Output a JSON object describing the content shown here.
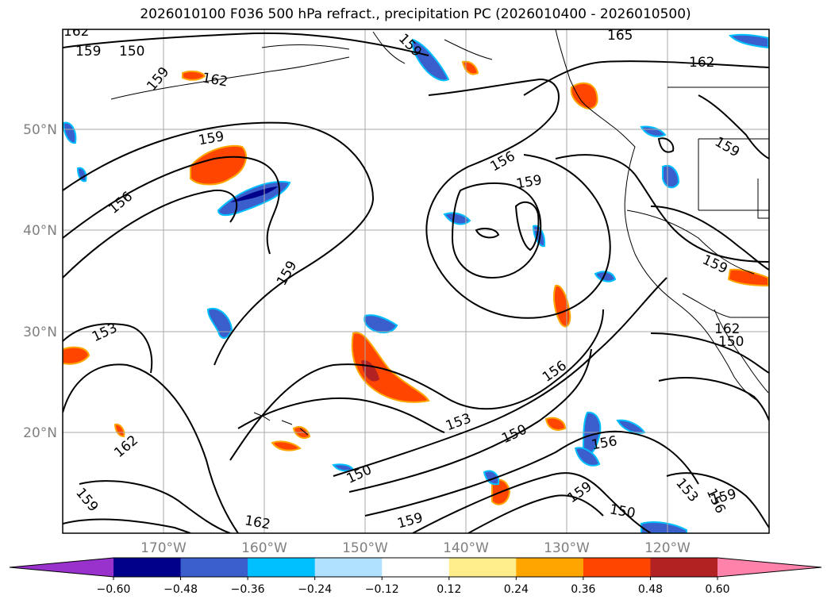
{
  "title": "2026010100 F036 500 hPa refract., precipitation PC (2026010400 - 2026010500)",
  "lat_labels": [
    "50°N",
    "40°N",
    "30°N",
    "20°N"
  ],
  "lon_labels": [
    "170°W",
    "160°W",
    "150°W",
    "140°W",
    "130°W",
    "120°W"
  ],
  "colorbar": {
    "colors": [
      "#9932cc",
      "#00008b",
      "#3a5fcd",
      "#00bfff",
      "#b0e2ff",
      "#ffffff",
      "#ffec8b",
      "#ffa500",
      "#ff4500",
      "#b22222",
      "#ff82ab"
    ],
    "tick_labels": [
      "−0.60",
      "−0.48",
      "−0.36",
      "−0.24",
      "−0.12",
      "0.12",
      "0.24",
      "0.36",
      "0.48",
      "0.60"
    ]
  },
  "contour_labels": [
    "162",
    "159",
    "162",
    "165",
    "162",
    "159",
    "159",
    "156",
    "156",
    "159",
    "159",
    "159",
    "153",
    "156",
    "153",
    "150",
    "150",
    "156",
    "162",
    "159",
    "159",
    "150",
    "153",
    "156",
    "159",
    "159",
    "162",
    "150",
    "159",
    "162",
    "159",
    "150"
  ],
  "line_color": "#000000",
  "grid_color": "#a9a9a9"
}
